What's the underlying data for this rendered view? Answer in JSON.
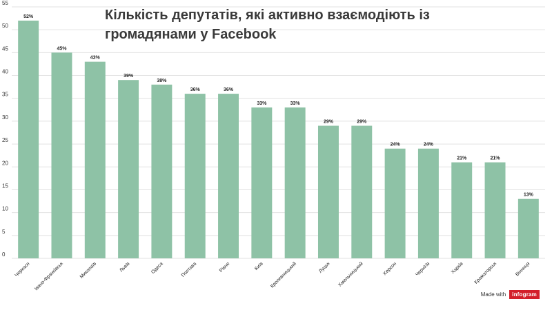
{
  "chart_data": {
    "type": "bar",
    "title": "Кількість депутатів, які активно взаємодіють із громадянами у Facebook",
    "categories": [
      "Черкаси",
      "Івано-Франківськ",
      "Миколаїв",
      "Львів",
      "Одеса",
      "Полтава",
      "Рівне",
      "Київ",
      "Кропивницький",
      "Луцьк",
      "Хмельницький",
      "Херсон",
      "Чернігів",
      "Харків",
      "Краматорськ",
      "Вінниця"
    ],
    "values": [
      52,
      45,
      43,
      39,
      38,
      36,
      36,
      33,
      33,
      29,
      29,
      24,
      24,
      21,
      21,
      13
    ],
    "value_labels": [
      "52%",
      "45%",
      "43%",
      "39%",
      "38%",
      "36%",
      "36%",
      "33%",
      "33%",
      "29%",
      "29%",
      "24%",
      "24%",
      "21%",
      "21%",
      "13%"
    ],
    "ylim": [
      0,
      55
    ],
    "yticks": [
      0,
      5,
      10,
      15,
      20,
      25,
      30,
      35,
      40,
      45,
      50,
      55
    ],
    "grid": true,
    "bar_color": "#8ec2a6"
  },
  "footer": {
    "made_with": "Made with",
    "brand": "infogram"
  }
}
